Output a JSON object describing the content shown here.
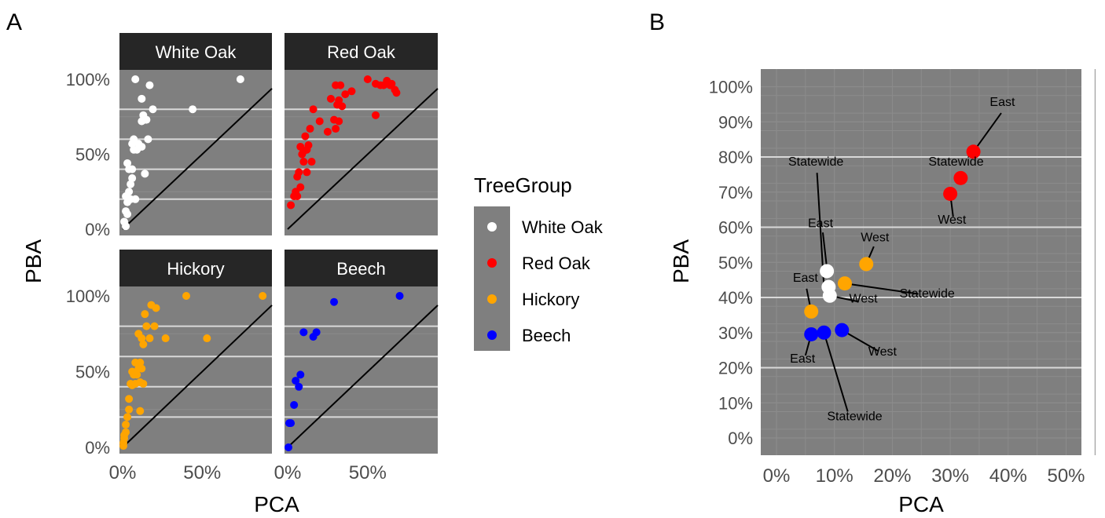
{
  "panel_labels": {
    "a": "A",
    "b": "B"
  },
  "colors": {
    "panel_bg": "#7f7f7f",
    "strip_bg": "#262626",
    "strip_text": "#ffffff",
    "grid_major": "#d9d9d9",
    "grid_minor": "#8c8c8c",
    "identity_line": "#000000",
    "axis_text": "#4d4d4d"
  },
  "legend": {
    "title": "TreeGroup",
    "items": [
      {
        "label": "White Oak",
        "color": "#ffffff"
      },
      {
        "label": "Red Oak",
        "color": "#ff0000"
      },
      {
        "label": "Hickory",
        "color": "#ffa500"
      },
      {
        "label": "Beech",
        "color": "#0000ff"
      }
    ]
  },
  "chart_data": [
    {
      "type": "scatter",
      "panel": "A",
      "facets": [
        "White Oak",
        "Red Oak",
        "Hickory",
        "Beech"
      ],
      "xlabel": "PCA",
      "ylabel": "PBA",
      "xlim": [
        0,
        0.9
      ],
      "ylim": [
        0,
        1.0
      ],
      "x_ticks": [
        0,
        0.5
      ],
      "x_tick_labels": [
        "0%",
        "50%"
      ],
      "y_ticks": [
        0,
        0.5,
        1.0
      ],
      "y_tick_labels": [
        "0%",
        "50%",
        "100%"
      ],
      "identity_line": true,
      "series": [
        {
          "name": "White Oak",
          "color": "#ffffff",
          "x": [
            0.08,
            0.74,
            0.17,
            0.12,
            0.13,
            0.19,
            0.44,
            0.14,
            0.12,
            0.15,
            0.16,
            0.07,
            0.06,
            0.1,
            0.07,
            0.09,
            0.12,
            0.03,
            0.04,
            0.06,
            0.06,
            0.05,
            0.14,
            0.04,
            0.02,
            0.04,
            0.03,
            0.05,
            0.08,
            0.02,
            0.03,
            0.01,
            0.02
          ],
          "y": [
            1.0,
            1.0,
            0.96,
            0.87,
            0.76,
            0.8,
            0.8,
            0.73,
            0.72,
            0.73,
            0.6,
            0.6,
            0.57,
            0.57,
            0.53,
            0.53,
            0.55,
            0.44,
            0.4,
            0.4,
            0.34,
            0.3,
            0.37,
            0.25,
            0.22,
            0.2,
            0.18,
            0.2,
            0.2,
            0.12,
            0.1,
            0.05,
            0.02
          ]
        },
        {
          "name": "Red Oak",
          "color": "#ff0000",
          "x": [
            0.5,
            0.55,
            0.6,
            0.62,
            0.64,
            0.65,
            0.58,
            0.67,
            0.68,
            0.3,
            0.33,
            0.36,
            0.4,
            0.27,
            0.32,
            0.31,
            0.34,
            0.29,
            0.16,
            0.2,
            0.25,
            0.3,
            0.32,
            0.55,
            0.14,
            0.11,
            0.08,
            0.12,
            0.1,
            0.09,
            0.13,
            0.1,
            0.15,
            0.07,
            0.12,
            0.06,
            0.08,
            0.05,
            0.04,
            0.06,
            0.02
          ],
          "y": [
            1.0,
            0.97,
            0.96,
            0.99,
            0.96,
            0.97,
            0.96,
            0.93,
            0.91,
            0.96,
            0.96,
            0.9,
            0.92,
            0.87,
            0.86,
            0.83,
            0.82,
            0.73,
            0.8,
            0.72,
            0.65,
            0.67,
            0.72,
            0.76,
            0.67,
            0.62,
            0.55,
            0.53,
            0.52,
            0.5,
            0.56,
            0.45,
            0.45,
            0.38,
            0.38,
            0.35,
            0.28,
            0.25,
            0.22,
            0.22,
            0.16
          ]
        },
        {
          "name": "Hickory",
          "color": "#ffa500",
          "x": [
            0.4,
            0.88,
            0.18,
            0.14,
            0.21,
            0.15,
            0.2,
            0.1,
            0.13,
            0.17,
            0.12,
            0.27,
            0.53,
            0.11,
            0.08,
            0.1,
            0.12,
            0.06,
            0.09,
            0.07,
            0.05,
            0.11,
            0.13,
            0.06,
            0.08,
            0.04,
            0.04,
            0.03,
            0.11,
            0.02,
            0.02,
            0.01,
            0.01,
            0.005,
            0.005
          ],
          "y": [
            1.0,
            1.0,
            0.94,
            0.88,
            0.92,
            0.8,
            0.8,
            0.75,
            0.68,
            0.72,
            0.72,
            0.72,
            0.72,
            0.56,
            0.56,
            0.52,
            0.52,
            0.5,
            0.48,
            0.48,
            0.42,
            0.43,
            0.42,
            0.41,
            0.42,
            0.32,
            0.25,
            0.2,
            0.24,
            0.15,
            0.1,
            0.08,
            0.06,
            0.03,
            0.01
          ]
        },
        {
          "name": "Beech",
          "color": "#0000ff",
          "x": [
            0.7,
            0.29,
            0.1,
            0.18,
            0.16,
            0.08,
            0.05,
            0.07,
            0.04,
            0.02,
            0.01,
            0.005
          ],
          "y": [
            1.0,
            0.96,
            0.76,
            0.76,
            0.73,
            0.48,
            0.44,
            0.4,
            0.28,
            0.16,
            0.16,
            0.0
          ]
        }
      ]
    },
    {
      "type": "scatter",
      "panel": "B",
      "xlabel": "PCA",
      "ylabel": "PBA",
      "xlim": [
        0,
        0.5
      ],
      "ylim": [
        0,
        1.0
      ],
      "x_ticks": [
        0,
        0.1,
        0.2,
        0.3,
        0.4,
        0.5
      ],
      "x_tick_labels": [
        "0%",
        "10%",
        "20%",
        "30%",
        "40%",
        "50%"
      ],
      "y_ticks": [
        0,
        0.1,
        0.2,
        0.3,
        0.4,
        0.5,
        0.6,
        0.7,
        0.8,
        0.9,
        1.0
      ],
      "y_tick_labels": [
        "0%",
        "10%",
        "20%",
        "30%",
        "40%",
        "50%",
        "60%",
        "70%",
        "80%",
        "90%",
        "100%"
      ],
      "series": [
        {
          "name": "White Oak",
          "color": "#ffffff",
          "points": [
            {
              "label": "East",
              "x": 0.087,
              "y": 0.475
            },
            {
              "label": "Statewide",
              "x": 0.09,
              "y": 0.43
            },
            {
              "label": "West",
              "x": 0.092,
              "y": 0.405
            }
          ]
        },
        {
          "name": "Red Oak",
          "color": "#ff0000",
          "points": [
            {
              "label": "East",
              "x": 0.34,
              "y": 0.815
            },
            {
              "label": "Statewide",
              "x": 0.318,
              "y": 0.74
            },
            {
              "label": "West",
              "x": 0.3,
              "y": 0.695
            }
          ]
        },
        {
          "name": "Hickory",
          "color": "#ffa500",
          "points": [
            {
              "label": "West",
              "x": 0.155,
              "y": 0.495
            },
            {
              "label": "Statewide",
              "x": 0.118,
              "y": 0.44
            },
            {
              "label": "East",
              "x": 0.06,
              "y": 0.36
            }
          ]
        },
        {
          "name": "Beech",
          "color": "#0000ff",
          "points": [
            {
              "label": "East",
              "x": 0.06,
              "y": 0.295
            },
            {
              "label": "Statewide",
              "x": 0.082,
              "y": 0.3
            },
            {
              "label": "West",
              "x": 0.113,
              "y": 0.307
            }
          ]
        }
      ],
      "annotations": [
        {
          "text": "East",
          "x": 0.39,
          "y": 0.945
        },
        {
          "text": "Statewide",
          "x": 0.31,
          "y": 0.775
        },
        {
          "text": "West",
          "x": 0.303,
          "y": 0.61
        },
        {
          "text": "Statewide",
          "x": 0.068,
          "y": 0.775
        },
        {
          "text": "East",
          "x": 0.076,
          "y": 0.6
        },
        {
          "text": "West",
          "x": 0.17,
          "y": 0.56
        },
        {
          "text": "Statewide",
          "x": 0.26,
          "y": 0.4
        },
        {
          "text": "West",
          "x": 0.15,
          "y": 0.385
        },
        {
          "text": "East",
          "x": 0.05,
          "y": 0.445
        },
        {
          "text": "East",
          "x": 0.045,
          "y": 0.215
        },
        {
          "text": "West",
          "x": 0.183,
          "y": 0.235
        },
        {
          "text": "Statewide",
          "x": 0.135,
          "y": 0.05
        }
      ]
    }
  ]
}
